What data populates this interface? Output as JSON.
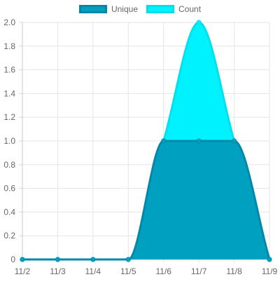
{
  "chart_data": {
    "type": "area",
    "categories": [
      "11/2",
      "11/3",
      "11/4",
      "11/5",
      "11/6",
      "11/7",
      "11/8",
      "11/9"
    ],
    "series": [
      {
        "name": "Unique",
        "values": [
          0,
          0,
          0,
          0,
          1,
          1,
          1,
          0
        ],
        "fill": "#00a0c0",
        "stroke": "#0088aa"
      },
      {
        "name": "Count",
        "values": [
          0,
          0,
          0,
          0,
          1,
          2,
          1,
          0
        ],
        "fill": "#00f2ff",
        "stroke": "#00e0ee"
      }
    ],
    "ylim": [
      0,
      2.0
    ],
    "yticks": [
      "0",
      "0.2",
      "0.4",
      "0.6",
      "0.8",
      "1.0",
      "1.2",
      "1.4",
      "1.6",
      "1.8",
      "2.0"
    ],
    "grid": true,
    "legend_position": "top-center"
  }
}
